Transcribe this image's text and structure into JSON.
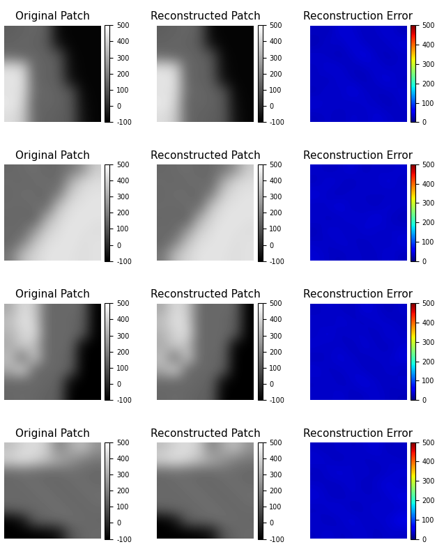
{
  "chart_data": [
    {
      "type": "heatmap",
      "title": "Original Patch",
      "color": "gray",
      "tick_labels": false,
      "colorbar_lim": [
        -100,
        500
      ],
      "colorbar_ticks": [
        -100,
        0,
        100,
        200,
        300,
        400,
        500
      ],
      "cells": [
        [
          120,
          130,
          140,
          120,
          -80,
          -90,
          -90,
          -90
        ],
        [
          130,
          140,
          130,
          110,
          -60,
          -90,
          -90,
          -90
        ],
        [
          150,
          130,
          140,
          130,
          100,
          -80,
          -90,
          -90
        ],
        [
          420,
          400,
          130,
          140,
          110,
          -70,
          -90,
          -90
        ],
        [
          440,
          430,
          140,
          130,
          120,
          -60,
          -90,
          -90
        ],
        [
          430,
          420,
          150,
          140,
          130,
          100,
          -80,
          -90
        ],
        [
          450,
          400,
          130,
          140,
          130,
          110,
          -70,
          -90
        ],
        [
          420,
          380,
          140,
          130,
          120,
          110,
          -60,
          -90
        ]
      ]
    },
    {
      "type": "heatmap",
      "title": "Reconstructed Patch",
      "color": "gray",
      "tick_labels": false,
      "colorbar_lim": [
        -100,
        500
      ],
      "colorbar_ticks": [
        -100,
        0,
        100,
        200,
        300,
        400,
        500
      ],
      "cells": [
        [
          120,
          130,
          140,
          120,
          -80,
          -90,
          -90,
          -90
        ],
        [
          130,
          140,
          130,
          110,
          -60,
          -90,
          -90,
          -90
        ],
        [
          150,
          130,
          140,
          130,
          100,
          -80,
          -90,
          -90
        ],
        [
          420,
          400,
          130,
          140,
          110,
          -70,
          -90,
          -90
        ],
        [
          440,
          430,
          140,
          130,
          120,
          -60,
          -90,
          -90
        ],
        [
          430,
          420,
          150,
          140,
          130,
          100,
          -80,
          -90
        ],
        [
          450,
          400,
          130,
          140,
          130,
          110,
          -70,
          -90
        ],
        [
          420,
          380,
          140,
          130,
          120,
          110,
          -60,
          -90
        ]
      ]
    },
    {
      "type": "heatmap",
      "title": "Reconstruction Error",
      "color": "jet",
      "tick_labels": false,
      "colorbar_lim": [
        0,
        500
      ],
      "colorbar_ticks": [
        0,
        100,
        200,
        300,
        400,
        500
      ],
      "cells": [
        [
          30,
          25,
          40,
          35,
          28,
          32,
          38,
          26
        ],
        [
          22,
          35,
          30,
          42,
          30,
          27,
          33,
          40
        ],
        [
          36,
          28,
          25,
          33,
          45,
          30,
          26,
          31
        ],
        [
          28,
          40,
          34,
          27,
          30,
          38,
          29,
          35
        ],
        [
          33,
          26,
          38,
          30,
          25,
          34,
          41,
          28
        ],
        [
          25,
          37,
          29,
          44,
          32,
          27,
          30,
          36
        ],
        [
          39,
          30,
          35,
          28,
          36,
          31,
          25,
          33
        ],
        [
          27,
          34,
          26,
          37,
          29,
          40,
          32,
          30
        ]
      ]
    },
    {
      "type": "heatmap",
      "title": "Original Patch",
      "color": "gray",
      "tick_labels": false,
      "colorbar_lim": [
        -100,
        500
      ],
      "colorbar_ticks": [
        -100,
        0,
        100,
        200,
        300,
        400,
        500
      ],
      "cells": [
        [
          140,
          150,
          160,
          140,
          150,
          180,
          250,
          380
        ],
        [
          150,
          140,
          150,
          160,
          140,
          300,
          400,
          420
        ],
        [
          140,
          160,
          150,
          140,
          200,
          380,
          420,
          430
        ],
        [
          150,
          140,
          160,
          150,
          350,
          420,
          430,
          440
        ],
        [
          140,
          150,
          120,
          300,
          400,
          430,
          440,
          430
        ],
        [
          150,
          140,
          250,
          380,
          420,
          440,
          430,
          420
        ],
        [
          140,
          200,
          350,
          420,
          430,
          440,
          420,
          430
        ],
        [
          180,
          340,
          400,
          430,
          440,
          430,
          420,
          430
        ]
      ]
    },
    {
      "type": "heatmap",
      "title": "Reconstructed Patch",
      "color": "gray",
      "tick_labels": false,
      "colorbar_lim": [
        -100,
        500
      ],
      "colorbar_ticks": [
        -100,
        0,
        100,
        200,
        300,
        400,
        500
      ],
      "cells": [
        [
          140,
          150,
          160,
          140,
          150,
          180,
          250,
          380
        ],
        [
          150,
          140,
          150,
          160,
          140,
          300,
          400,
          420
        ],
        [
          140,
          160,
          150,
          140,
          200,
          380,
          420,
          430
        ],
        [
          150,
          140,
          160,
          150,
          350,
          420,
          430,
          440
        ],
        [
          140,
          150,
          120,
          300,
          400,
          430,
          440,
          430
        ],
        [
          150,
          140,
          250,
          380,
          420,
          440,
          430,
          420
        ],
        [
          140,
          200,
          350,
          420,
          430,
          440,
          420,
          430
        ],
        [
          180,
          340,
          400,
          430,
          440,
          430,
          420,
          430
        ]
      ]
    },
    {
      "type": "heatmap",
      "title": "Reconstruction Error",
      "color": "jet",
      "tick_labels": false,
      "colorbar_lim": [
        0,
        500
      ],
      "colorbar_ticks": [
        0,
        100,
        200,
        300,
        400,
        500
      ],
      "cells": [
        [
          34,
          28,
          31,
          40,
          26,
          35,
          29,
          37
        ],
        [
          27,
          39,
          33,
          25,
          38,
          30,
          42,
          28
        ],
        [
          41,
          30,
          26,
          36,
          29,
          33,
          27,
          35
        ],
        [
          29,
          35,
          43,
          28,
          34,
          26,
          38,
          31
        ],
        [
          36,
          27,
          30,
          39,
          31,
          44,
          29,
          26
        ],
        [
          25,
          38,
          34,
          27,
          40,
          30,
          35,
          33
        ],
        [
          32,
          29,
          37,
          33,
          26,
          36,
          28,
          41
        ],
        [
          38,
          31,
          27,
          35,
          30,
          29,
          39,
          27
        ]
      ]
    },
    {
      "type": "heatmap",
      "title": "Original Patch",
      "color": "gray",
      "tick_labels": false,
      "colorbar_lim": [
        -100,
        500
      ],
      "colorbar_ticks": [
        -100,
        0,
        100,
        200,
        300,
        400,
        500
      ],
      "cells": [
        [
          300,
          420,
          380,
          150,
          140,
          150,
          130,
          -100
        ],
        [
          350,
          430,
          400,
          140,
          150,
          140,
          120,
          -100
        ],
        [
          320,
          400,
          420,
          150,
          140,
          150,
          110,
          -100
        ],
        [
          300,
          380,
          350,
          140,
          150,
          140,
          -90,
          -100
        ],
        [
          350,
          150,
          380,
          150,
          140,
          130,
          -100,
          -100
        ],
        [
          300,
          400,
          150,
          140,
          150,
          120,
          -100,
          -100
        ],
        [
          150,
          140,
          150,
          140,
          130,
          -80,
          -100,
          -100
        ],
        [
          140,
          150,
          140,
          130,
          120,
          -100,
          -100,
          -100
        ]
      ]
    },
    {
      "type": "heatmap",
      "title": "Reconstructed Patch",
      "color": "gray",
      "tick_labels": false,
      "colorbar_lim": [
        -100,
        500
      ],
      "colorbar_ticks": [
        -100,
        0,
        100,
        200,
        300,
        400,
        500
      ],
      "cells": [
        [
          300,
          420,
          380,
          150,
          140,
          150,
          130,
          -100
        ],
        [
          350,
          430,
          400,
          140,
          150,
          140,
          120,
          -100
        ],
        [
          320,
          400,
          420,
          150,
          140,
          150,
          110,
          -100
        ],
        [
          300,
          380,
          350,
          140,
          150,
          140,
          -90,
          -100
        ],
        [
          350,
          150,
          380,
          150,
          140,
          130,
          -100,
          -100
        ],
        [
          300,
          400,
          150,
          140,
          150,
          120,
          -100,
          -100
        ],
        [
          150,
          140,
          150,
          140,
          130,
          -80,
          -100,
          -100
        ],
        [
          140,
          150,
          140,
          130,
          120,
          -100,
          -100,
          -100
        ]
      ]
    },
    {
      "type": "heatmap",
      "title": "Reconstruction Error",
      "color": "jet",
      "tick_labels": false,
      "colorbar_lim": [
        0,
        500
      ],
      "colorbar_ticks": [
        0,
        100,
        200,
        300,
        400,
        500
      ],
      "cells": [
        [
          28,
          36,
          30,
          27,
          41,
          33,
          25,
          34
        ],
        [
          35,
          26,
          39,
          31,
          28,
          37,
          32,
          29
        ],
        [
          30,
          42,
          27,
          36,
          33,
          26,
          40,
          31
        ],
        [
          37,
          29,
          34,
          25,
          39,
          30,
          28,
          36
        ],
        [
          26,
          33,
          40,
          32,
          27,
          35,
          31,
          43
        ],
        [
          39,
          28,
          31,
          38,
          30,
          25,
          36,
          27
        ],
        [
          29,
          37,
          26,
          34,
          42,
          32,
          27,
          35
        ],
        [
          33,
          30,
          38,
          27,
          31,
          36,
          29,
          26
        ]
      ]
    },
    {
      "type": "heatmap",
      "title": "Original Patch",
      "color": "gray",
      "tick_labels": false,
      "colorbar_lim": [
        -100,
        500
      ],
      "colorbar_ticks": [
        -100,
        0,
        100,
        200,
        300,
        400,
        500
      ],
      "cells": [
        [
          350,
          400,
          420,
          380,
          200,
          300,
          350,
          250
        ],
        [
          400,
          430,
          400,
          350,
          300,
          250,
          200,
          180
        ],
        [
          150,
          160,
          150,
          140,
          150,
          160,
          150,
          140
        ],
        [
          140,
          150,
          160,
          150,
          140,
          150,
          160,
          150
        ],
        [
          150,
          140,
          150,
          160,
          150,
          140,
          150,
          160
        ],
        [
          130,
          150,
          140,
          150,
          160,
          150,
          140,
          150
        ],
        [
          -100,
          -50,
          120,
          140,
          150,
          160,
          150,
          140
        ],
        [
          -100,
          -100,
          -100,
          -90,
          -60,
          100,
          140,
          150
        ]
      ]
    },
    {
      "type": "heatmap",
      "title": "Reconstructed Patch",
      "color": "gray",
      "tick_labels": false,
      "colorbar_lim": [
        -100,
        500
      ],
      "colorbar_ticks": [
        -100,
        0,
        100,
        200,
        300,
        400,
        500
      ],
      "cells": [
        [
          350,
          400,
          420,
          380,
          200,
          300,
          350,
          250
        ],
        [
          400,
          430,
          400,
          350,
          300,
          250,
          200,
          180
        ],
        [
          150,
          160,
          150,
          140,
          150,
          160,
          150,
          140
        ],
        [
          140,
          150,
          160,
          150,
          140,
          150,
          160,
          150
        ],
        [
          150,
          140,
          150,
          160,
          150,
          140,
          150,
          160
        ],
        [
          130,
          150,
          140,
          150,
          160,
          150,
          140,
          150
        ],
        [
          -100,
          -50,
          120,
          140,
          150,
          160,
          150,
          140
        ],
        [
          -100,
          -100,
          -100,
          -90,
          -60,
          100,
          140,
          150
        ]
      ]
    },
    {
      "type": "heatmap",
      "title": "Reconstruction Error",
      "color": "jet",
      "tick_labels": false,
      "colorbar_lim": [
        0,
        500
      ],
      "colorbar_ticks": [
        0,
        100,
        200,
        300,
        400,
        500
      ],
      "cells": [
        [
          31,
          27,
          36,
          29,
          34,
          40,
          26,
          32
        ],
        [
          38,
          33,
          25,
          37,
          28,
          31,
          35,
          29
        ],
        [
          26,
          35,
          41,
          30,
          36,
          27,
          33,
          39
        ],
        [
          33,
          28,
          30,
          38,
          25,
          35,
          42,
          30
        ],
        [
          40,
          31,
          27,
          34,
          33,
          29,
          36,
          45
        ],
        [
          28,
          36,
          39,
          26,
          31,
          38,
          30,
          34
        ],
        [
          35,
          25,
          32,
          41,
          29,
          33,
          37,
          50
        ],
        [
          30,
          38,
          29,
          33,
          36,
          28,
          34,
          31
        ]
      ]
    }
  ]
}
